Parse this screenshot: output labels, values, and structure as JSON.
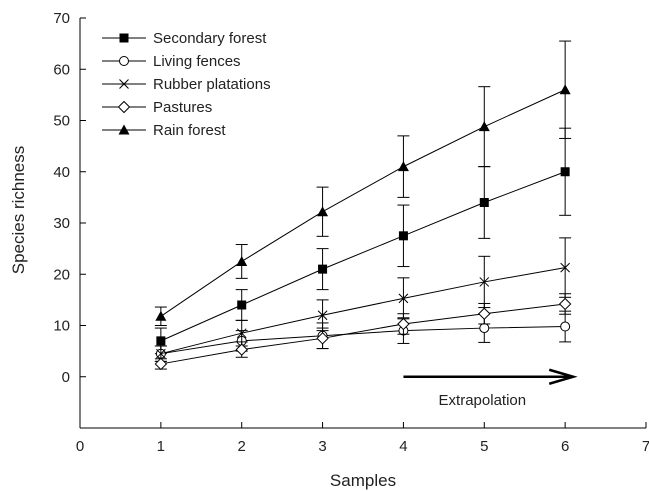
{
  "chart_data": {
    "type": "line",
    "title": "",
    "xlabel": "Samples",
    "ylabel": "Species richness",
    "xlim": [
      0,
      7
    ],
    "ylim": [
      -10,
      70
    ],
    "xticks": [
      0,
      1,
      2,
      3,
      4,
      5,
      6,
      7
    ],
    "yticks": [
      0,
      10,
      20,
      30,
      40,
      50,
      60,
      70
    ],
    "grid": false,
    "legend_position": "top-left",
    "x": [
      1,
      2,
      3,
      4,
      5,
      6
    ],
    "series": [
      {
        "name": "Secondary forest",
        "marker": "filled-square",
        "values": [
          7,
          14,
          21,
          27.5,
          34,
          40
        ],
        "error": [
          2.5,
          3,
          4,
          6,
          7,
          8.5
        ]
      },
      {
        "name": "Living fences",
        "marker": "open-circle",
        "values": [
          4.5,
          7,
          8,
          9,
          9.5,
          9.8
        ],
        "error": [
          1.5,
          2,
          2.5,
          2.5,
          2.8,
          3
        ]
      },
      {
        "name": "Rubber platations",
        "marker": "x-cross",
        "values": [
          4.5,
          8.5,
          12,
          15.3,
          18.5,
          21.3
        ],
        "error": [
          1.5,
          2.5,
          3,
          4,
          5,
          5.8
        ]
      },
      {
        "name": "Pastures",
        "marker": "open-diamond",
        "values": [
          2.5,
          5.3,
          7.5,
          10.3,
          12.3,
          14.2
        ],
        "error": [
          1,
          1.5,
          2,
          2,
          2,
          2
        ]
      },
      {
        "name": "Rain forest",
        "marker": "filled-triangle",
        "values": [
          11.8,
          22.5,
          32.2,
          41,
          48.8,
          56
        ],
        "error": [
          1.8,
          3.3,
          4.8,
          6,
          7.8,
          9.5
        ]
      }
    ],
    "annotation": {
      "text": "Extrapolation",
      "arrow_from_x": 4,
      "arrow_to_x": 6.1,
      "arrow_y": 0
    }
  }
}
